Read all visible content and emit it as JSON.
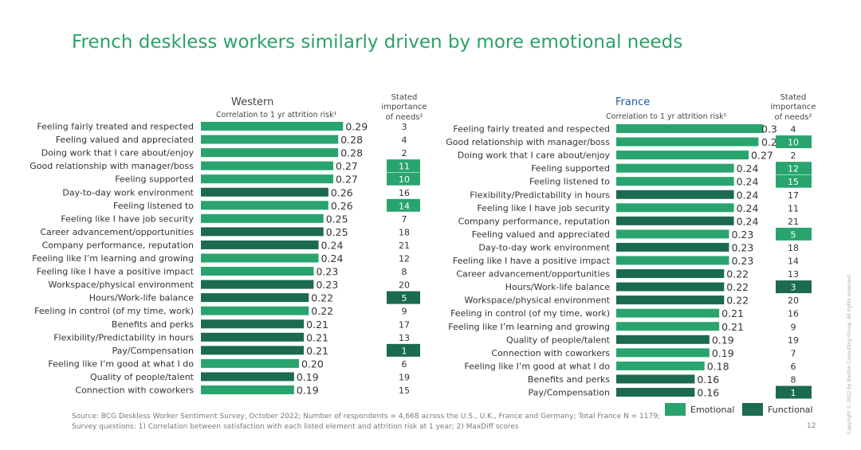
{
  "title": "French deskless workers similarly driven by more emotional needs",
  "legend": {
    "emotional": "Emotional",
    "functional": "Functional"
  },
  "colors": {
    "emotional": "#29a46f",
    "functional": "#1b6a52",
    "western_header": "#444444",
    "france_header": "#1f5d99"
  },
  "footer": {
    "source": "Source: BCG Deskless Worker Sentiment Survey, October 2022; Number of respondents = 4,668 across the U.S., U.K., France and Germany; Total France N = 1179; Survey questions: 1) Correlation between satisfaction with each listed element and attrition risk at 1 year; 2) MaxDiff scores",
    "page_number": "12",
    "copyright": "Copyright © 2022 by Boston Consulting Group. All rights reserved."
  },
  "chart_data": [
    {
      "type": "bar",
      "orientation": "horizontal",
      "header": "Western",
      "subtitle": "Correlation to 1 yr attrition risk¹",
      "importance_header": [
        "Stated",
        "importance",
        "of needs²"
      ],
      "series": [
        {
          "name": "Emotional"
        },
        {
          "name": "Functional"
        }
      ],
      "rows": [
        {
          "label": "Feeling fairly treated and respected",
          "value": 0.29,
          "value_label": "0.29",
          "kind": "emotional",
          "rank": "3",
          "highlight": "none"
        },
        {
          "label": "Feeling valued and appreciated",
          "value": 0.28,
          "value_label": "0.28",
          "kind": "emotional",
          "rank": "4",
          "highlight": "none"
        },
        {
          "label": "Doing work that I care about/enjoy",
          "value": 0.28,
          "value_label": "0.28",
          "kind": "emotional",
          "rank": "2",
          "highlight": "none"
        },
        {
          "label": "Good relationship with manager/boss",
          "value": 0.27,
          "value_label": "0.27",
          "kind": "emotional",
          "rank": "11",
          "highlight": "emotional"
        },
        {
          "label": "Feeling supported",
          "value": 0.27,
          "value_label": "0.27",
          "kind": "emotional",
          "rank": "10",
          "highlight": "emotional"
        },
        {
          "label": "Day-to-day work environment",
          "value": 0.26,
          "value_label": "0.26",
          "kind": "functional",
          "rank": "16",
          "highlight": "none"
        },
        {
          "label": "Feeling listened to",
          "value": 0.26,
          "value_label": "0.26",
          "kind": "emotional",
          "rank": "14",
          "highlight": "emotional"
        },
        {
          "label": "Feeling like I have job security",
          "value": 0.25,
          "value_label": "0.25",
          "kind": "emotional",
          "rank": "7",
          "highlight": "none"
        },
        {
          "label": "Career advancement/opportunities",
          "value": 0.25,
          "value_label": "0.25",
          "kind": "functional",
          "rank": "18",
          "highlight": "none"
        },
        {
          "label": "Company performance, reputation",
          "value": 0.24,
          "value_label": "0.24",
          "kind": "functional",
          "rank": "21",
          "highlight": "none"
        },
        {
          "label": "Feeling like I’m learning and growing",
          "value": 0.24,
          "value_label": "0.24",
          "kind": "emotional",
          "rank": "12",
          "highlight": "none"
        },
        {
          "label": "Feeling like I have a positive impact",
          "value": 0.23,
          "value_label": "0.23",
          "kind": "emotional",
          "rank": "8",
          "highlight": "none"
        },
        {
          "label": "Workspace/physical environment",
          "value": 0.23,
          "value_label": "0.23",
          "kind": "functional",
          "rank": "20",
          "highlight": "none"
        },
        {
          "label": "Hours/Work-life balance",
          "value": 0.22,
          "value_label": "0.22",
          "kind": "functional",
          "rank": "5",
          "highlight": "functional"
        },
        {
          "label": "Feeling in control (of my time, work)",
          "value": 0.22,
          "value_label": "0.22",
          "kind": "emotional",
          "rank": "9",
          "highlight": "none"
        },
        {
          "label": "Benefits and perks",
          "value": 0.21,
          "value_label": "0.21",
          "kind": "functional",
          "rank": "17",
          "highlight": "none"
        },
        {
          "label": "Flexibility/Predictability in hours",
          "value": 0.21,
          "value_label": "0.21",
          "kind": "functional",
          "rank": "13",
          "highlight": "none"
        },
        {
          "label": "Pay/Compensation",
          "value": 0.21,
          "value_label": "0.21",
          "kind": "functional",
          "rank": "1",
          "highlight": "functional"
        },
        {
          "label": "Feeling like I’m good at what I do",
          "value": 0.2,
          "value_label": "0.20",
          "kind": "emotional",
          "rank": "6",
          "highlight": "none"
        },
        {
          "label": "Quality of people/talent",
          "value": 0.19,
          "value_label": "0.19",
          "kind": "functional",
          "rank": "19",
          "highlight": "none"
        },
        {
          "label": "Connection with coworkers",
          "value": 0.19,
          "value_label": "0.19",
          "kind": "emotional",
          "rank": "15",
          "highlight": "none"
        }
      ]
    },
    {
      "type": "bar",
      "orientation": "horizontal",
      "header": "France",
      "subtitle": "Correlation to 1 yr attrition risk¹",
      "importance_header": [
        "Stated",
        "importance",
        "of needs²"
      ],
      "series": [
        {
          "name": "Emotional"
        },
        {
          "name": "Functional"
        }
      ],
      "rows": [
        {
          "label": "Feeling fairly treated and respected",
          "value": 0.3,
          "value_label": "0.3",
          "kind": "emotional",
          "rank": "4",
          "highlight": "none"
        },
        {
          "label": "Good relationship with manager/boss",
          "value": 0.29,
          "value_label": "0.29",
          "kind": "emotional",
          "rank": "10",
          "highlight": "emotional"
        },
        {
          "label": "Doing work that I care about/enjoy",
          "value": 0.27,
          "value_label": "0.27",
          "kind": "emotional",
          "rank": "2",
          "highlight": "none"
        },
        {
          "label": "Feeling supported",
          "value": 0.24,
          "value_label": "0.24",
          "kind": "emotional",
          "rank": "12",
          "highlight": "emotional"
        },
        {
          "label": "Feeling listened to",
          "value": 0.24,
          "value_label": "0.24",
          "kind": "emotional",
          "rank": "15",
          "highlight": "emotional"
        },
        {
          "label": "Flexibility/Predictability in hours",
          "value": 0.24,
          "value_label": "0.24",
          "kind": "functional",
          "rank": "17",
          "highlight": "none"
        },
        {
          "label": "Feeling like I have job security",
          "value": 0.24,
          "value_label": "0.24",
          "kind": "emotional",
          "rank": "11",
          "highlight": "none"
        },
        {
          "label": "Company performance, reputation",
          "value": 0.24,
          "value_label": "0.24",
          "kind": "functional",
          "rank": "21",
          "highlight": "none"
        },
        {
          "label": "Feeling valued and appreciated",
          "value": 0.23,
          "value_label": "0.23",
          "kind": "emotional",
          "rank": "5",
          "highlight": "emotional"
        },
        {
          "label": "Day-to-day work environment",
          "value": 0.23,
          "value_label": "0.23",
          "kind": "functional",
          "rank": "18",
          "highlight": "none"
        },
        {
          "label": "Feeling like I have a positive impact",
          "value": 0.23,
          "value_label": "0.23",
          "kind": "emotional",
          "rank": "14",
          "highlight": "none"
        },
        {
          "label": "Career advancement/opportunities",
          "value": 0.22,
          "value_label": "0.22",
          "kind": "functional",
          "rank": "13",
          "highlight": "none"
        },
        {
          "label": "Hours/Work-life balance",
          "value": 0.22,
          "value_label": "0.22",
          "kind": "functional",
          "rank": "3",
          "highlight": "functional"
        },
        {
          "label": "Workspace/physical environment",
          "value": 0.22,
          "value_label": "0.22",
          "kind": "functional",
          "rank": "20",
          "highlight": "none"
        },
        {
          "label": "Feeling in control (of my time, work)",
          "value": 0.21,
          "value_label": "0.21",
          "kind": "emotional",
          "rank": "16",
          "highlight": "none"
        },
        {
          "label": "Feeling like I’m learning and growing",
          "value": 0.21,
          "value_label": "0.21",
          "kind": "emotional",
          "rank": "9",
          "highlight": "none"
        },
        {
          "label": "Quality of people/talent",
          "value": 0.19,
          "value_label": "0.19",
          "kind": "functional",
          "rank": "19",
          "highlight": "none"
        },
        {
          "label": "Connection with coworkers",
          "value": 0.19,
          "value_label": "0.19",
          "kind": "emotional",
          "rank": "7",
          "highlight": "none"
        },
        {
          "label": "Feeling like I’m good at what I do",
          "value": 0.18,
          "value_label": "0.18",
          "kind": "emotional",
          "rank": "6",
          "highlight": "none"
        },
        {
          "label": "Benefits and perks",
          "value": 0.16,
          "value_label": "0.16",
          "kind": "functional",
          "rank": "8",
          "highlight": "none"
        },
        {
          "label": "Pay/Compensation",
          "value": 0.16,
          "value_label": "0.16",
          "kind": "functional",
          "rank": "1",
          "highlight": "functional"
        }
      ]
    }
  ]
}
